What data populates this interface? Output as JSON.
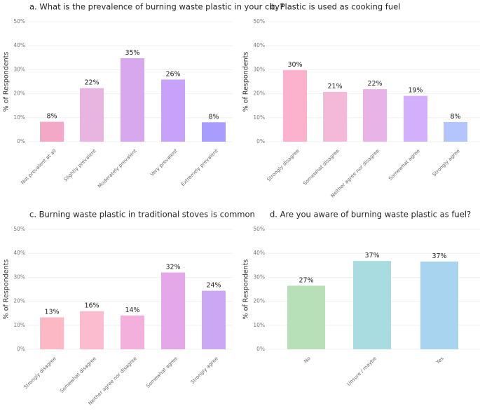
{
  "chart_data": [
    {
      "type": "bar",
      "title": "a. What is the prevalence of burning waste plastic in your city?",
      "ylabel": "% of Respondents",
      "ylim": [
        0,
        50
      ],
      "yticks": [
        "0%",
        "10%",
        "20%",
        "30%",
        "40%",
        "50%"
      ],
      "grid": true,
      "categories": [
        "Not prevalent at all",
        "Slightly prevalent",
        "Moderately prevalent",
        "Very prevalent",
        "Extremely prevalent"
      ],
      "values": [
        8.3,
        22.3,
        34.8,
        25.9,
        8.1
      ],
      "labels": [
        "8%",
        "22%",
        "35%",
        "26%",
        "8%"
      ],
      "colors": [
        "#f4a8c8",
        "#e8b4e0",
        "#d8a8ee",
        "#c8a2f8",
        "#a89cfc"
      ]
    },
    {
      "type": "bar",
      "title": "b. Plastic is used as cooking fuel",
      "ylabel": "% of Respondents",
      "ylim": [
        0,
        50
      ],
      "yticks": [
        "0%",
        "10%",
        "20%",
        "30%",
        "40%",
        "50%"
      ],
      "grid": true,
      "categories": [
        "Strongly disagree",
        "Somewhat disagree",
        "Neither agree nor disagree",
        "Somewhat agree",
        "Strongly agree"
      ],
      "values": [
        29.8,
        20.8,
        21.9,
        19.1,
        8.2
      ],
      "labels": [
        "30%",
        "21%",
        "22%",
        "19%",
        "8%"
      ],
      "colors": [
        "#fcb2cc",
        "#f4b8d8",
        "#e8b4e8",
        "#d4b0fc",
        "#b4c4fc"
      ]
    },
    {
      "type": "bar",
      "title": "c. Burning waste plastic in traditional stoves is common",
      "ylabel": "% of Respondents",
      "ylim": [
        0,
        50
      ],
      "yticks": [
        "0%",
        "10%",
        "20%",
        "30%",
        "40%",
        "50%"
      ],
      "grid": true,
      "categories": [
        "Strongly disagree",
        "Somewhat disagree",
        "Neither agree nor disagree",
        "Somewhat agree",
        "Strongly agree"
      ],
      "values": [
        13.3,
        15.9,
        14.1,
        32.0,
        24.4
      ],
      "labels": [
        "13%",
        "16%",
        "14%",
        "32%",
        "24%"
      ],
      "colors": [
        "#fcb8c4",
        "#fcbcd0",
        "#f4b0dc",
        "#e4a8e8",
        "#cca8f4"
      ]
    },
    {
      "type": "bar",
      "title": "d. Are you aware of burning waste plastic as fuel?",
      "ylabel": "% of Respondents",
      "ylim": [
        0,
        50
      ],
      "yticks": [
        "0%",
        "10%",
        "20%",
        "30%",
        "40%",
        "50%"
      ],
      "grid": true,
      "categories": [
        "No",
        "Unsure / maybe",
        "Yes"
      ],
      "values": [
        26.5,
        36.8,
        36.6
      ],
      "labels": [
        "27%",
        "37%",
        "37%"
      ],
      "colors": [
        "#b8e0b8",
        "#a8dce0",
        "#a8d4f0"
      ]
    }
  ]
}
